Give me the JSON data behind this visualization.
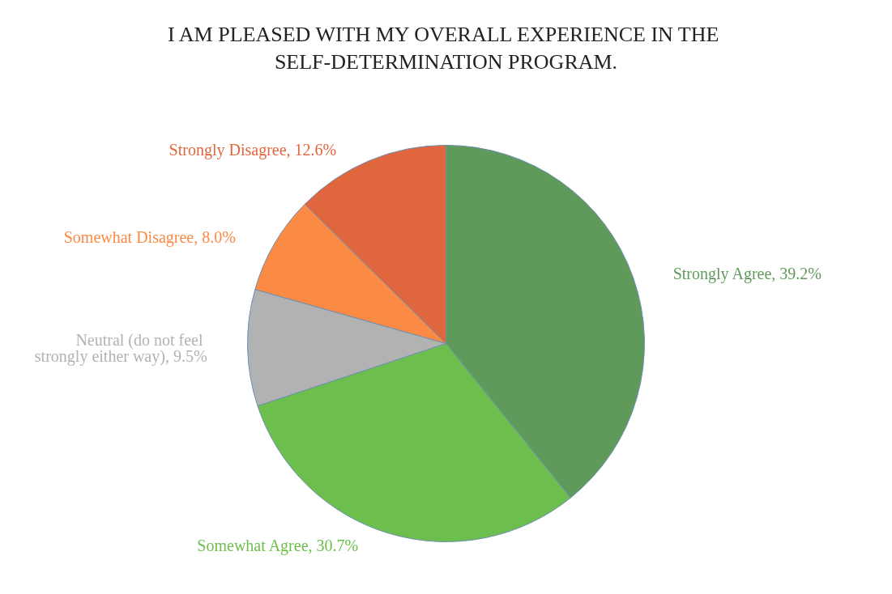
{
  "chart_data": {
    "type": "pie",
    "title": "I AM PLEASED WITH MY OVERALL EXPERIENCE IN THE SELF-DETERMINATION PROGRAM.",
    "categories": [
      "Strongly Agree",
      "Somewhat Agree",
      "Neutral (do not feel strongly either way)",
      "Somewhat Disagree",
      "Strongly Disagree"
    ],
    "values": [
      39.2,
      30.7,
      9.5,
      8.0,
      12.6
    ],
    "value_labels": [
      "39.2%",
      "30.7%",
      "9.5%",
      "8.0%",
      "12.6%"
    ],
    "colors": [
      "#5f9a5b",
      "#6cbf4c",
      "#b2b2b2",
      "#fb8a45",
      "#e0673d"
    ],
    "legend": false
  }
}
